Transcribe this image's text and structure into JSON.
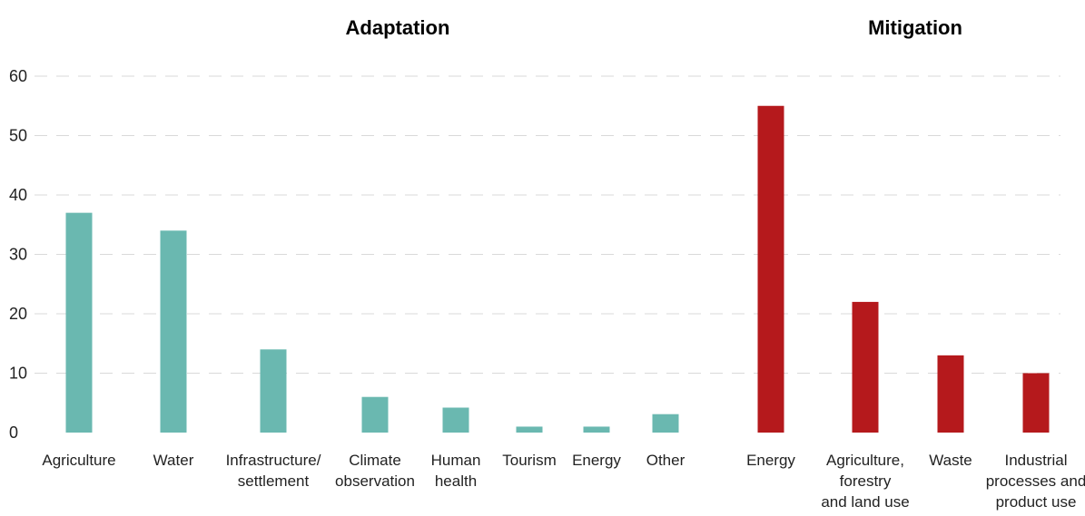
{
  "chart_data": {
    "type": "bar",
    "ylim": [
      0,
      60
    ],
    "yticks": [
      0,
      10,
      20,
      30,
      40,
      50,
      60
    ],
    "grid": true,
    "panels": [
      {
        "title": "Adaptation",
        "color": "#6ab8b0",
        "categories": [
          [
            "Agriculture"
          ],
          [
            "Water"
          ],
          [
            "Infrastructure/",
            "settlement"
          ],
          [
            "Climate",
            "observation"
          ],
          [
            "Human",
            "health"
          ],
          [
            "Tourism"
          ],
          [
            "Energy"
          ],
          [
            "Other"
          ]
        ],
        "values": [
          37,
          34,
          14,
          6,
          4.2,
          1,
          1,
          3.1
        ]
      },
      {
        "title": "Mitigation",
        "color": "#b5191c",
        "categories": [
          [
            "Energy"
          ],
          [
            "Agriculture,",
            "forestry",
            "and land use"
          ],
          [
            "Waste"
          ],
          [
            "Industrial",
            "processes and",
            "product use"
          ]
        ],
        "values": [
          55,
          22,
          13,
          10
        ]
      }
    ]
  }
}
